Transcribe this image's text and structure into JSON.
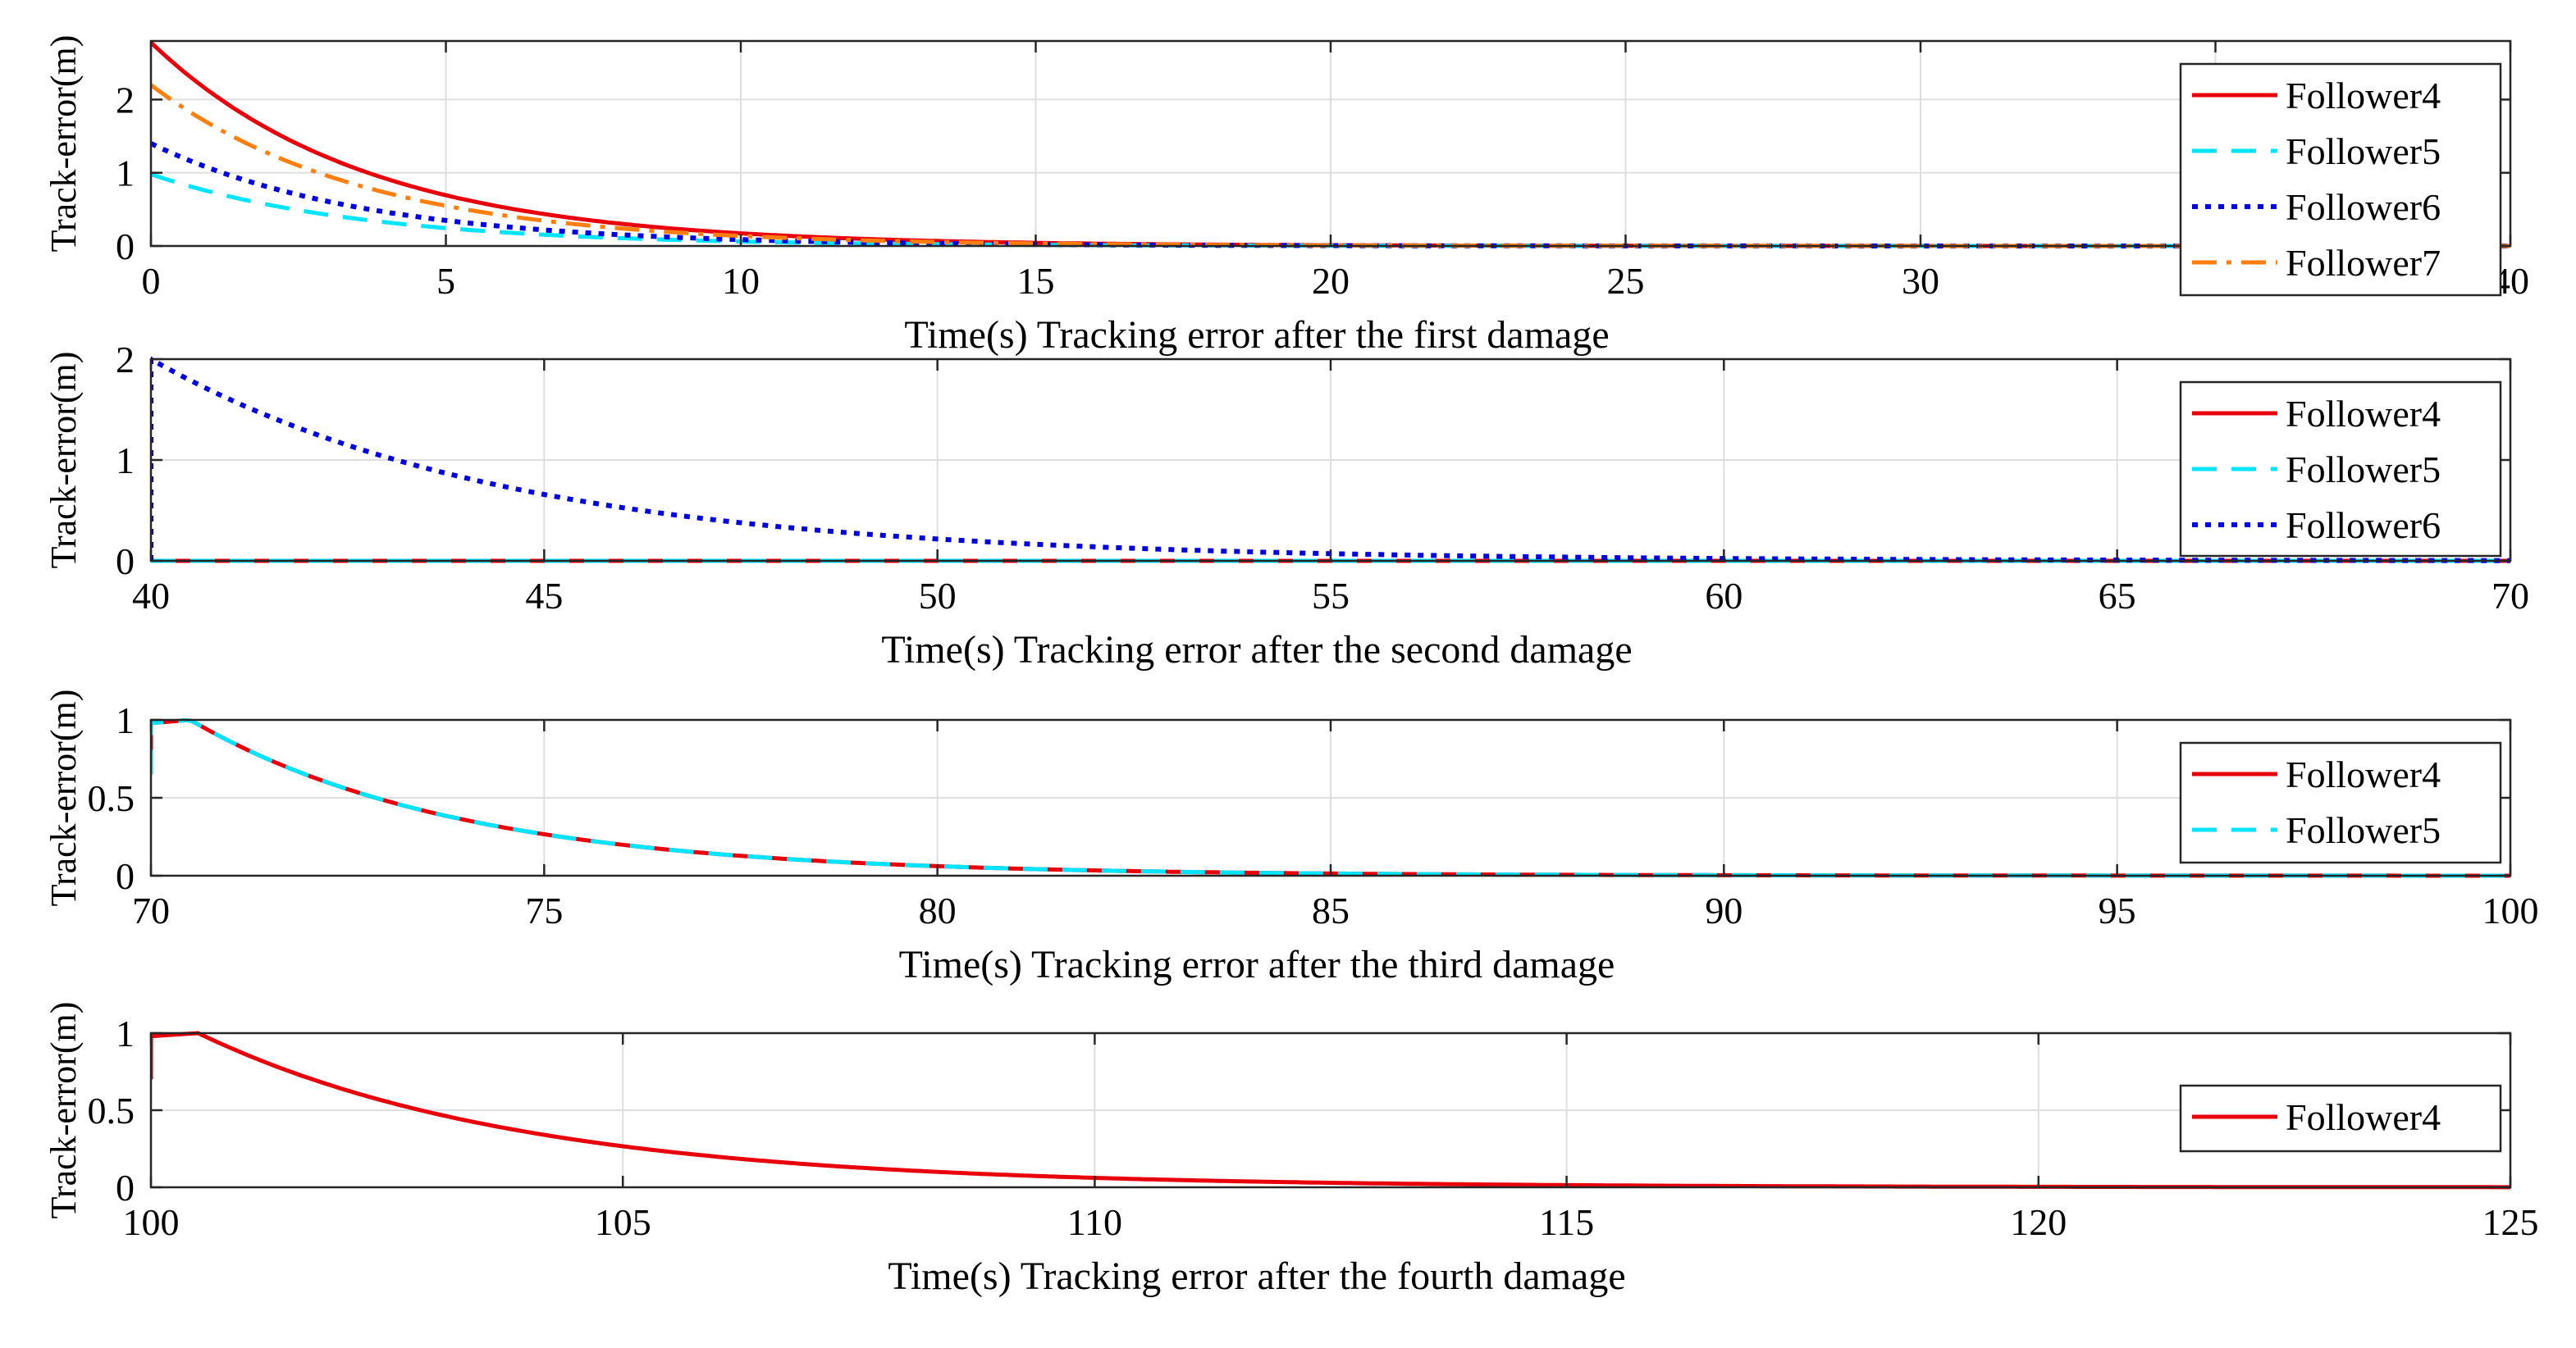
{
  "chart_data": [
    {
      "type": "line",
      "title": "",
      "ylabel": "Track-error(m)",
      "xlabel": "Time(s) Tracking error after the first damage",
      "xlim": [
        0,
        40
      ],
      "ylim": [
        0,
        2.8
      ],
      "xticks": [
        0,
        5,
        10,
        15,
        20,
        25,
        30,
        35,
        40
      ],
      "xtick_labels": [
        "0",
        "5",
        "10",
        "15",
        "20",
        "25",
        "30",
        "",
        "40"
      ],
      "yticks": [
        0,
        1,
        2
      ],
      "ytick_labels": [
        "0",
        "1",
        "2"
      ],
      "grid": true,
      "legend_position": "right",
      "series": [
        {
          "name": "Follower4",
          "color": "#e8000b",
          "dash": "solid",
          "model": "exp_decay",
          "t0": 0,
          "y0": 2.78,
          "tau": 3.6
        },
        {
          "name": "Follower5",
          "color": "#00e5ff",
          "dash": "dashed",
          "model": "exp_decay",
          "t0": 0,
          "y0": 0.98,
          "tau": 3.6
        },
        {
          "name": "Follower6",
          "color": "#0000e0",
          "dash": "dotted",
          "model": "exp_decay",
          "t0": 0,
          "y0": 1.4,
          "tau": 3.6
        },
        {
          "name": "Follower7",
          "color": "#ff7f0e",
          "dash": "dashdot",
          "model": "exp_decay",
          "t0": 0,
          "y0": 2.2,
          "tau": 3.6
        }
      ]
    },
    {
      "type": "line",
      "title": "",
      "ylabel": "Track-error(m)",
      "xlabel": "Time(s) Tracking error after the second damage",
      "xlim": [
        40,
        70
      ],
      "ylim": [
        0,
        2
      ],
      "xticks": [
        40,
        45,
        50,
        55,
        60,
        65,
        70
      ],
      "xtick_labels": [
        "40",
        "45",
        "50",
        "55",
        "60",
        "65",
        "70"
      ],
      "yticks": [
        0,
        1,
        2
      ],
      "ytick_labels": [
        "0",
        "1",
        "2"
      ],
      "grid": true,
      "legend_position": "right",
      "series": [
        {
          "name": "Follower4",
          "color": "#e8000b",
          "dash": "solid",
          "model": "constant",
          "value": 0
        },
        {
          "name": "Follower5",
          "color": "#00e5ff",
          "dash": "dashed",
          "model": "constant",
          "value": 0
        },
        {
          "name": "Follower6",
          "color": "#0000e0",
          "dash": "dotted",
          "model": "exp_decay",
          "t0": 40,
          "y0": 2.0,
          "tau": 4.5,
          "start_value": 0
        }
      ]
    },
    {
      "type": "line",
      "title": "",
      "ylabel": "Track-error(m)",
      "xlabel": "Time(s) Tracking error after the third damage",
      "xlim": [
        70,
        100
      ],
      "ylim": [
        0,
        1
      ],
      "xticks": [
        70,
        75,
        80,
        85,
        90,
        95,
        100
      ],
      "xtick_labels": [
        "70",
        "75",
        "80",
        "85",
        "90",
        "95",
        "100"
      ],
      "yticks": [
        0,
        0.5,
        1
      ],
      "ytick_labels": [
        "0",
        "0.5",
        "1"
      ],
      "grid": true,
      "legend_position": "right",
      "series": [
        {
          "name": "Follower4",
          "color": "#e8000b",
          "dash": "solid",
          "model": "bump_decay",
          "t0": 70,
          "y0": 1.0,
          "tau": 3.4,
          "start_value": 0.65
        },
        {
          "name": "Follower5",
          "color": "#00e5ff",
          "dash": "dashed",
          "model": "bump_decay",
          "t0": 70,
          "y0": 1.0,
          "tau": 3.4,
          "start_value": 0.65
        }
      ]
    },
    {
      "type": "line",
      "title": "",
      "ylabel": "Track-error(m)",
      "xlabel": "Time(s) Tracking error after the fourth damage",
      "xlim": [
        100,
        125
      ],
      "ylim": [
        0,
        1
      ],
      "xticks": [
        100,
        105,
        110,
        115,
        120,
        125
      ],
      "xtick_labels": [
        "100",
        "105",
        "110",
        "115",
        "120",
        "125"
      ],
      "yticks": [
        0,
        0.5,
        1
      ],
      "ytick_labels": [
        "0",
        "0.5",
        "1"
      ],
      "grid": true,
      "legend_position": "right",
      "series": [
        {
          "name": "Follower4",
          "color": "#e8000b",
          "dash": "solid",
          "model": "bump_decay",
          "t0": 100,
          "y0": 1.0,
          "tau": 3.4,
          "start_value": 0.7
        }
      ]
    }
  ]
}
